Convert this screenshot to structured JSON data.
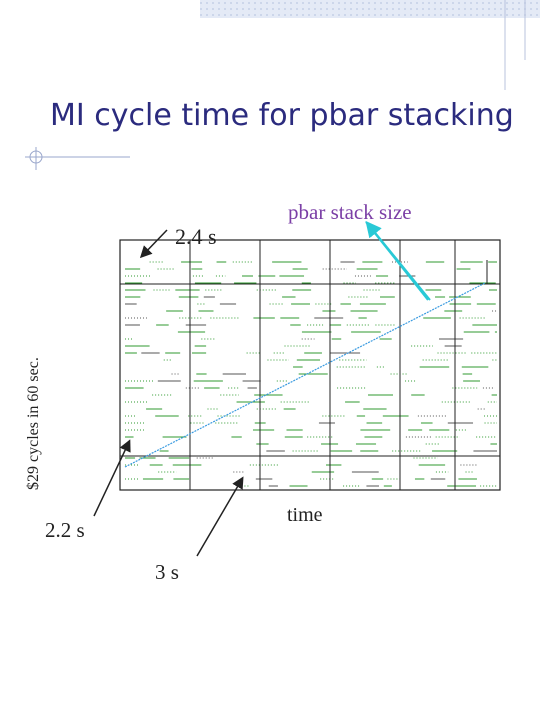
{
  "slide": {
    "title": "MI cycle time for pbar stacking",
    "annotations": {
      "top_cycle": "2.4 s",
      "stack": "pbar stack size",
      "y_label": "$29 cycles in 60 sec.",
      "x_label": "time",
      "low_cycle": "2.2 s",
      "long_cycle": "3 s"
    }
  }
}
